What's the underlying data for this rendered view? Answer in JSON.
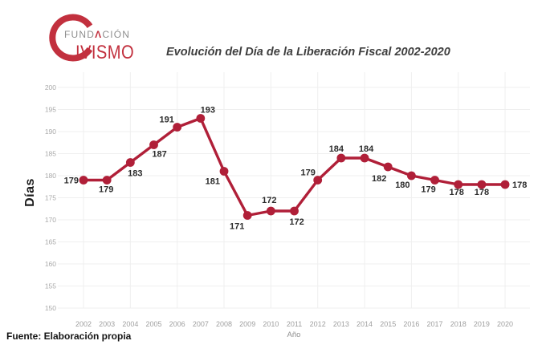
{
  "header": {
    "logo": {
      "big_letter": "C",
      "word_top_1": "FUND",
      "word_top_accent": "Λ",
      "word_top_2": "CIÓN",
      "word_bottom": "IVISMO"
    },
    "title": "Evolución del Día de la Liberación Fiscal 2002-2020"
  },
  "footer": {
    "source": "Fuente: Elaboración propia"
  },
  "colors": {
    "brand_red": "#c2303e",
    "line_red": "#b01f38",
    "grid": "#efefef",
    "tick_gray": "#a0a0a0",
    "label_dark": "#2b2b2b"
  },
  "chart_data": {
    "type": "line",
    "title": "Evolución del Día de la Liberación Fiscal 2002-2020",
    "xlabel": "Año",
    "ylabel": "Días",
    "ylim": [
      150,
      200
    ],
    "ytick_step": 5,
    "grid": true,
    "legend": "none",
    "series_color": "#b01f38",
    "categories": [
      "2002",
      "2003",
      "2004",
      "2005",
      "2006",
      "2007",
      "2008",
      "2009",
      "2010",
      "2011",
      "2012",
      "2013",
      "2014",
      "2015",
      "2016",
      "2017",
      "2018",
      "2019",
      "2020"
    ],
    "values": [
      179,
      179,
      183,
      187,
      191,
      193,
      181,
      171,
      172,
      172,
      179,
      184,
      184,
      182,
      180,
      179,
      178,
      178,
      178
    ],
    "label_offsets": [
      [
        -6,
        4,
        "end"
      ],
      [
        -1,
        15,
        "middle"
      ],
      [
        6,
        17,
        "middle"
      ],
      [
        7,
        15,
        "middle"
      ],
      [
        -13,
        -6,
        "middle"
      ],
      [
        9,
        -7,
        "middle"
      ],
      [
        -5,
        16,
        "end"
      ],
      [
        -13,
        17,
        "middle"
      ],
      [
        -2,
        -10,
        "middle"
      ],
      [
        3,
        17,
        "middle"
      ],
      [
        -12,
        -6,
        "middle"
      ],
      [
        -6,
        -8,
        "middle"
      ],
      [
        2,
        -8,
        "middle"
      ],
      [
        -11,
        18,
        "middle"
      ],
      [
        -11,
        15,
        "middle"
      ],
      [
        -8,
        15,
        "middle"
      ],
      [
        -2,
        13,
        "middle"
      ],
      [
        0,
        13,
        "middle"
      ],
      [
        9,
        4,
        "start"
      ]
    ]
  }
}
